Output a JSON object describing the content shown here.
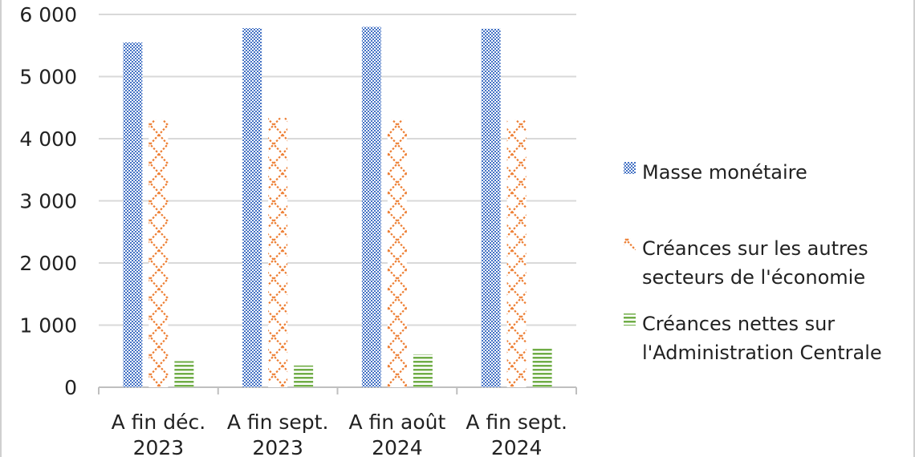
{
  "chart_data": {
    "type": "bar",
    "categories": [
      [
        "A fin déc.",
        "2023"
      ],
      [
        "A fin sept.",
        "2023"
      ],
      [
        "A fin août",
        "2024"
      ],
      [
        "A fin sept.",
        "2024"
      ]
    ],
    "series": [
      {
        "name": "Masse monétaire",
        "values": [
          5550,
          5780,
          5800,
          5770
        ],
        "color": "#4472c4",
        "pattern": "checker"
      },
      {
        "name": "Créances sur les autres secteurs de l'économie",
        "legend_lines": [
          "Créances sur les autres",
          "secteurs de l'économie"
        ],
        "values": [
          4300,
          4340,
          4300,
          4300
        ],
        "color": "#ed7d31",
        "pattern": "lattice"
      },
      {
        "name": "Créances nettes sur l'Administration Centrale",
        "legend_lines": [
          "Créances nettes sur",
          "l'Administration Centrale"
        ],
        "values": [
          420,
          350,
          530,
          630
        ],
        "color": "#70ad47",
        "pattern": "hlines"
      }
    ],
    "y_ticks": [
      "0",
      "1 000",
      "2 000",
      "3 000",
      "4 000",
      "5 000",
      "6 000"
    ],
    "ylim": [
      0,
      6000
    ],
    "grid": true,
    "legend_position": "right"
  }
}
